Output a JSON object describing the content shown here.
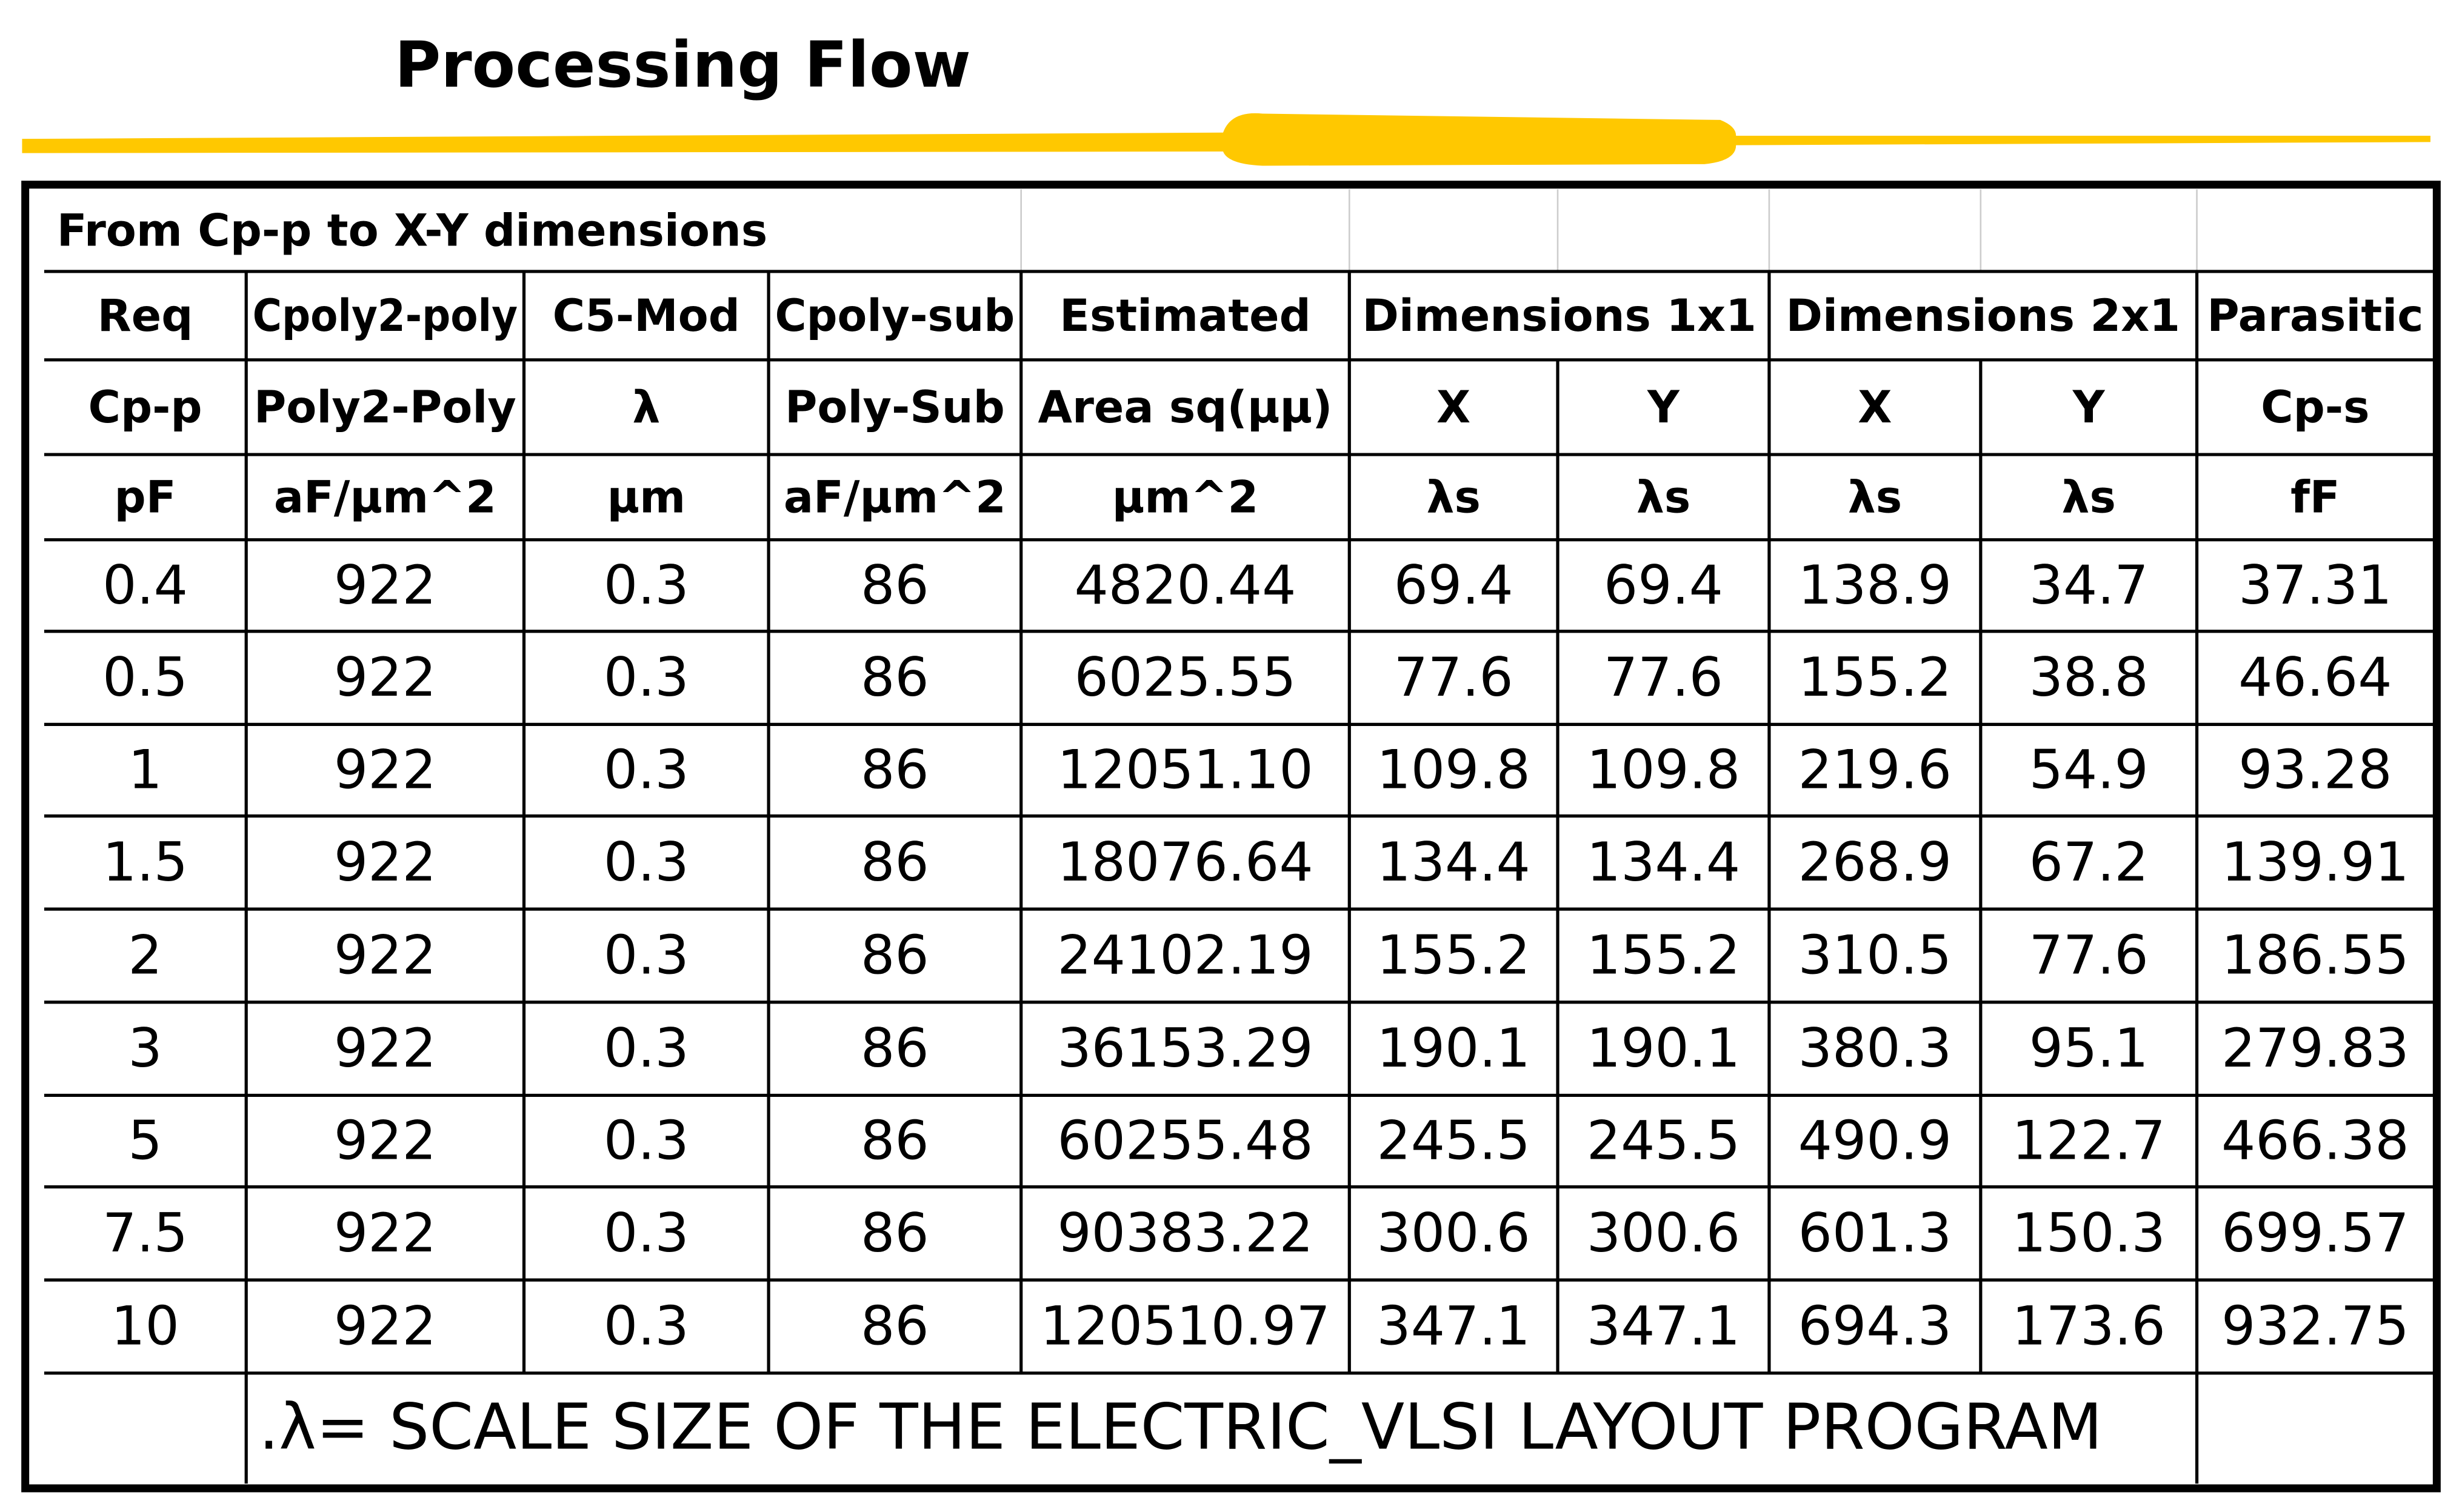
{
  "title": "Processing Flow",
  "table": {
    "caption": "From Cp-p to X-Y dimensions",
    "header_rows": [
      [
        "Req",
        "Cpoly2-poly",
        "C5-Mod",
        "Cpoly-sub",
        "Estimated",
        "Dimensions 1x1",
        "Dimensions 2x1",
        "Parasitic"
      ],
      [
        "Cp-p",
        "Poly2-Poly",
        "λ",
        "Poly-Sub",
        "Area sq(μμ)",
        "X",
        "Y",
        "X",
        "Y",
        "Cp-s"
      ],
      [
        "pF",
        "aF/μm^2",
        "μm",
        "aF/μm^2",
        "μm^2",
        "λs",
        "λs",
        "λs",
        "λs",
        "fF"
      ]
    ],
    "rows": [
      [
        "0.4",
        "922",
        "0.3",
        "86",
        "4820.44",
        "69.4",
        "69.4",
        "138.9",
        "34.7",
        "37.31"
      ],
      [
        "0.5",
        "922",
        "0.3",
        "86",
        "6025.55",
        "77.6",
        "77.6",
        "155.2",
        "38.8",
        "46.64"
      ],
      [
        "1",
        "922",
        "0.3",
        "86",
        "12051.10",
        "109.8",
        "109.8",
        "219.6",
        "54.9",
        "93.28"
      ],
      [
        "1.5",
        "922",
        "0.3",
        "86",
        "18076.64",
        "134.4",
        "134.4",
        "268.9",
        "67.2",
        "139.91"
      ],
      [
        "2",
        "922",
        "0.3",
        "86",
        "24102.19",
        "155.2",
        "155.2",
        "310.5",
        "77.6",
        "186.55"
      ],
      [
        "3",
        "922",
        "0.3",
        "86",
        "36153.29",
        "190.1",
        "190.1",
        "380.3",
        "95.1",
        "279.83"
      ],
      [
        "5",
        "922",
        "0.3",
        "86",
        "60255.48",
        "245.5",
        "245.5",
        "490.9",
        "122.7",
        "466.38"
      ],
      [
        "7.5",
        "922",
        "0.3",
        "86",
        "90383.22",
        "300.6",
        "300.6",
        "601.3",
        "150.3",
        "699.57"
      ],
      [
        "10",
        "922",
        "0.3",
        "86",
        "120510.97",
        "347.1",
        "347.1",
        "694.3",
        "173.6",
        "932.75"
      ]
    ],
    "footnote": ".λ= SCALE SIZE OF THE ELECTRIC_VLSI LAYOUT PROGRAM"
  }
}
